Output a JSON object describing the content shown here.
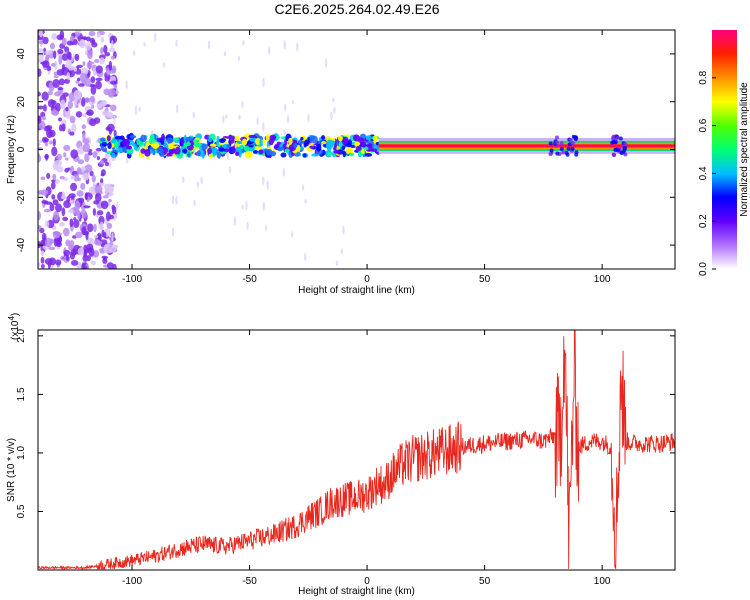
{
  "chart_data": [
    {
      "type": "heatmap",
      "title": "C2E6.2025.264.02.49.E26",
      "xlabel": "Height of straight line (km)",
      "ylabel": "Frequency (Hz)",
      "xlim": [
        -140,
        131
      ],
      "ylim": [
        -50,
        50
      ],
      "xticks": [
        -100,
        -50,
        0,
        50,
        100
      ],
      "yticks": [
        -40,
        -20,
        0,
        20,
        40
      ],
      "colorbar": {
        "label": "Normalized spectral amplitude",
        "range": [
          0,
          1
        ],
        "ticks": [
          "0.0",
          "0.2",
          "0.4",
          "0.6",
          "0.8"
        ],
        "colors": [
          "#ffffff",
          "#b070ff",
          "#6000ff",
          "#0000ff",
          "#00c0ff",
          "#00ff70",
          "#50ff00",
          "#ffff00",
          "#ff9000",
          "#ff2000",
          "#ff0080"
        ]
      },
      "features": [
        {
          "x_from": -140,
          "x_to": -107,
          "freq_from": -50,
          "freq_to": 50,
          "amplitude": 0.12,
          "color": "#8a2be2"
        },
        {
          "x_from": -113,
          "x_to": 5,
          "freq_center": 1.5,
          "freq_halfwidth": 4,
          "amplitude": 0.45
        },
        {
          "x_from": 5,
          "x_to": 131,
          "freq_center": 1.5,
          "freq_halfwidth": 1.5,
          "amplitude": 0.98
        }
      ]
    },
    {
      "type": "line",
      "xlabel": "Height of straight line (km)",
      "ylabel": "SNR (10 * v/v)",
      "y_multiplier": "(x10",
      "y_multiplier_exp": "4",
      "xlim": [
        -140,
        131
      ],
      "ylim": [
        0,
        2.05
      ],
      "xticks": [
        -100,
        -50,
        0,
        50,
        100
      ],
      "yticks": [
        "0.5",
        "1.0",
        "1.5",
        "2.0"
      ],
      "color": "#e8281e",
      "series": [
        {
          "x": [
            -140,
            -120,
            -110,
            -100,
            -90,
            -80,
            -70,
            -60,
            -50,
            -40,
            -30,
            -25,
            -20,
            -15,
            -10,
            -5,
            0,
            3,
            5,
            7,
            10,
            15,
            20,
            30,
            40,
            50,
            60,
            70,
            75,
            80,
            82,
            84,
            86,
            88,
            90,
            95,
            100,
            104,
            106,
            108,
            110,
            115,
            120,
            125,
            131
          ],
          "y": [
            0.02,
            0.02,
            0.05,
            0.08,
            0.12,
            0.18,
            0.22,
            0.2,
            0.25,
            0.3,
            0.38,
            0.45,
            0.5,
            0.58,
            0.6,
            0.62,
            0.65,
            0.7,
            0.75,
            0.72,
            0.8,
            0.9,
            0.95,
            1.0,
            1.05,
            1.08,
            1.1,
            1.12,
            1.1,
            1.15,
            1.05,
            2.05,
            0.2,
            1.7,
            1.05,
            1.1,
            1.1,
            1.05,
            0.3,
            1.67,
            1.1,
            1.08,
            1.08,
            1.08,
            1.1
          ]
        }
      ]
    }
  ]
}
